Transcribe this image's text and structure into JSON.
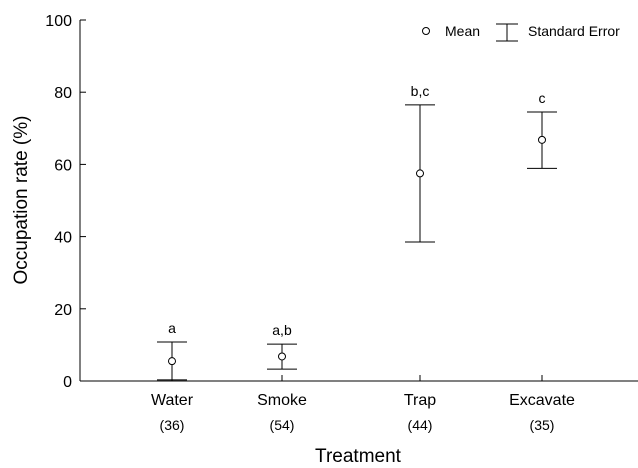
{
  "chart_data": {
    "type": "scatter",
    "xlabel": "Treatment",
    "ylabel": "Occupation rate (%)",
    "ylim": [
      0,
      100
    ],
    "yticks": [
      0,
      20,
      40,
      60,
      80,
      100
    ],
    "categories": [
      "Water",
      "Smoke",
      "Trap",
      "Excavate"
    ],
    "sample_sizes": [
      "(36)",
      "(54)",
      "(44)",
      "(35)"
    ],
    "means": [
      5.5,
      6.8,
      57.5,
      66.8
    ],
    "se_upper": [
      10.8,
      10.2,
      76.5,
      74.5
    ],
    "se_lower": [
      0.3,
      3.3,
      38.5,
      58.9
    ],
    "significance": [
      "a",
      "a,b",
      "b,c",
      "c"
    ],
    "legend": {
      "position": "top-right",
      "mean_label": "Mean",
      "error_label": "Standard Error"
    }
  }
}
